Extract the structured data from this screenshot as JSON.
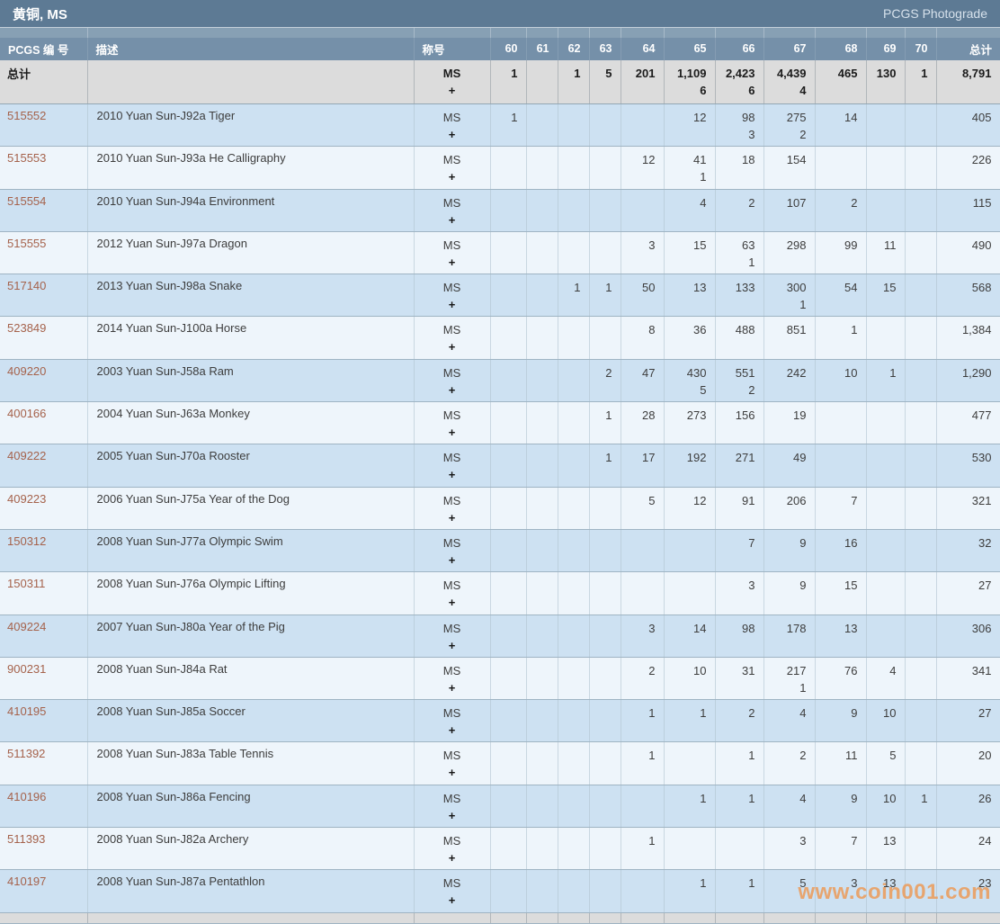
{
  "page": {
    "title": "黄铜, MS",
    "right_link": "PCGS Photograde",
    "watermark": "www.coin001.com"
  },
  "colors": {
    "title_bg": "#5d7a94",
    "header_bg": "#7590a9",
    "pcgs_link": "#a5624b",
    "row_blue": "#cde1f2",
    "row_light": "#eef5fb",
    "total_row_bg": "#dcdcdc",
    "watermark": "#ea9c5c"
  },
  "table": {
    "headers": {
      "pcgs_no": "PCGS 编 号",
      "description": "描述",
      "designation": "称号",
      "grades": [
        "60",
        "61",
        "62",
        "63",
        "64",
        "65",
        "66",
        "67",
        "68",
        "69",
        "70"
      ],
      "total": "总计"
    },
    "designation_lines": [
      "MS",
      "+"
    ],
    "total_row": {
      "label": "总计",
      "ms": [
        "1",
        "",
        "1",
        "5",
        "201",
        "1,109",
        "2,423",
        "4,439",
        "465",
        "130",
        "1"
      ],
      "plus": [
        "",
        "",
        "",
        "",
        "",
        "6",
        "6",
        "4",
        "",
        "",
        ""
      ],
      "total": "8,791"
    },
    "rows": [
      {
        "pcgs": "515552",
        "desc": "2010 Yuan Sun-J92a Tiger",
        "ms": [
          "1",
          "",
          "",
          "",
          "",
          "12",
          "98",
          "275",
          "14",
          "",
          ""
        ],
        "plus": [
          "",
          "",
          "",
          "",
          "",
          "",
          "3",
          "2",
          "",
          "",
          ""
        ],
        "total": "405"
      },
      {
        "pcgs": "515553",
        "desc": "2010 Yuan Sun-J93a He Calligraphy",
        "ms": [
          "",
          "",
          "",
          "",
          "12",
          "41",
          "18",
          "154",
          "",
          "",
          ""
        ],
        "plus": [
          "",
          "",
          "",
          "",
          "",
          "1",
          "",
          "",
          "",
          "",
          ""
        ],
        "total": "226"
      },
      {
        "pcgs": "515554",
        "desc": "2010 Yuan Sun-J94a Environment",
        "ms": [
          "",
          "",
          "",
          "",
          "",
          "4",
          "2",
          "107",
          "2",
          "",
          ""
        ],
        "plus": [
          "",
          "",
          "",
          "",
          "",
          "",
          "",
          "",
          "",
          "",
          ""
        ],
        "total": "115"
      },
      {
        "pcgs": "515555",
        "desc": "2012 Yuan Sun-J97a Dragon",
        "ms": [
          "",
          "",
          "",
          "",
          "3",
          "15",
          "63",
          "298",
          "99",
          "11",
          ""
        ],
        "plus": [
          "",
          "",
          "",
          "",
          "",
          "",
          "1",
          "",
          "",
          "",
          ""
        ],
        "total": "490"
      },
      {
        "pcgs": "517140",
        "desc": "2013 Yuan Sun-J98a Snake",
        "ms": [
          "",
          "",
          "1",
          "1",
          "50",
          "13",
          "133",
          "300",
          "54",
          "15",
          ""
        ],
        "plus": [
          "",
          "",
          "",
          "",
          "",
          "",
          "",
          "1",
          "",
          "",
          ""
        ],
        "total": "568"
      },
      {
        "pcgs": "523849",
        "desc": "2014 Yuan Sun-J100a Horse",
        "ms": [
          "",
          "",
          "",
          "",
          "8",
          "36",
          "488",
          "851",
          "1",
          "",
          ""
        ],
        "plus": [
          "",
          "",
          "",
          "",
          "",
          "",
          "",
          "",
          "",
          "",
          ""
        ],
        "total": "1,384"
      },
      {
        "pcgs": "409220",
        "desc": "2003 Yuan Sun-J58a Ram",
        "ms": [
          "",
          "",
          "",
          "2",
          "47",
          "430",
          "551",
          "242",
          "10",
          "1",
          ""
        ],
        "plus": [
          "",
          "",
          "",
          "",
          "",
          "5",
          "2",
          "",
          "",
          "",
          ""
        ],
        "total": "1,290"
      },
      {
        "pcgs": "400166",
        "desc": "2004 Yuan Sun-J63a Monkey",
        "ms": [
          "",
          "",
          "",
          "1",
          "28",
          "273",
          "156",
          "19",
          "",
          "",
          ""
        ],
        "plus": [
          "",
          "",
          "",
          "",
          "",
          "",
          "",
          "",
          "",
          "",
          ""
        ],
        "total": "477"
      },
      {
        "pcgs": "409222",
        "desc": "2005 Yuan Sun-J70a Rooster",
        "ms": [
          "",
          "",
          "",
          "1",
          "17",
          "192",
          "271",
          "49",
          "",
          "",
          ""
        ],
        "plus": [
          "",
          "",
          "",
          "",
          "",
          "",
          "",
          "",
          "",
          "",
          ""
        ],
        "total": "530"
      },
      {
        "pcgs": "409223",
        "desc": "2006 Yuan Sun-J75a Year of the Dog",
        "ms": [
          "",
          "",
          "",
          "",
          "5",
          "12",
          "91",
          "206",
          "7",
          "",
          ""
        ],
        "plus": [
          "",
          "",
          "",
          "",
          "",
          "",
          "",
          "",
          "",
          "",
          ""
        ],
        "total": "321"
      },
      {
        "pcgs": "150312",
        "desc": "2008 Yuan Sun-J77a Olympic Swim",
        "ms": [
          "",
          "",
          "",
          "",
          "",
          "",
          "7",
          "9",
          "16",
          "",
          ""
        ],
        "plus": [
          "",
          "",
          "",
          "",
          "",
          "",
          "",
          "",
          "",
          "",
          ""
        ],
        "total": "32"
      },
      {
        "pcgs": "150311",
        "desc": "2008 Yuan Sun-J76a Olympic Lifting",
        "ms": [
          "",
          "",
          "",
          "",
          "",
          "",
          "3",
          "9",
          "15",
          "",
          ""
        ],
        "plus": [
          "",
          "",
          "",
          "",
          "",
          "",
          "",
          "",
          "",
          "",
          ""
        ],
        "total": "27"
      },
      {
        "pcgs": "409224",
        "desc": "2007 Yuan Sun-J80a Year of the Pig",
        "ms": [
          "",
          "",
          "",
          "",
          "3",
          "14",
          "98",
          "178",
          "13",
          "",
          ""
        ],
        "plus": [
          "",
          "",
          "",
          "",
          "",
          "",
          "",
          "",
          "",
          "",
          ""
        ],
        "total": "306"
      },
      {
        "pcgs": "900231",
        "desc": "2008 Yuan Sun-J84a Rat",
        "ms": [
          "",
          "",
          "",
          "",
          "2",
          "10",
          "31",
          "217",
          "76",
          "4",
          ""
        ],
        "plus": [
          "",
          "",
          "",
          "",
          "",
          "",
          "",
          "1",
          "",
          "",
          ""
        ],
        "total": "341"
      },
      {
        "pcgs": "410195",
        "desc": "2008 Yuan Sun-J85a Soccer",
        "ms": [
          "",
          "",
          "",
          "",
          "1",
          "1",
          "2",
          "4",
          "9",
          "10",
          ""
        ],
        "plus": [
          "",
          "",
          "",
          "",
          "",
          "",
          "",
          "",
          "",
          "",
          ""
        ],
        "total": "27"
      },
      {
        "pcgs": "511392",
        "desc": "2008 Yuan Sun-J83a Table Tennis",
        "ms": [
          "",
          "",
          "",
          "",
          "1",
          "",
          "1",
          "2",
          "11",
          "5",
          ""
        ],
        "plus": [
          "",
          "",
          "",
          "",
          "",
          "",
          "",
          "",
          "",
          "",
          ""
        ],
        "total": "20"
      },
      {
        "pcgs": "410196",
        "desc": "2008 Yuan Sun-J86a Fencing",
        "ms": [
          "",
          "",
          "",
          "",
          "",
          "1",
          "1",
          "4",
          "9",
          "10",
          "1"
        ],
        "plus": [
          "",
          "",
          "",
          "",
          "",
          "",
          "",
          "",
          "",
          "",
          ""
        ],
        "total": "26"
      },
      {
        "pcgs": "511393",
        "desc": "2008 Yuan Sun-J82a Archery",
        "ms": [
          "",
          "",
          "",
          "",
          "1",
          "",
          "",
          "3",
          "7",
          "13",
          ""
        ],
        "plus": [
          "",
          "",
          "",
          "",
          "",
          "",
          "",
          "",
          "",
          "",
          ""
        ],
        "total": "24"
      },
      {
        "pcgs": "410197",
        "desc": "2008 Yuan Sun-J87a Pentathlon",
        "ms": [
          "",
          "",
          "",
          "",
          "",
          "1",
          "1",
          "5",
          "3",
          "13",
          ""
        ],
        "plus": [
          "",
          "",
          "",
          "",
          "",
          "",
          "",
          "",
          "",
          "",
          ""
        ],
        "total": "23"
      }
    ]
  }
}
